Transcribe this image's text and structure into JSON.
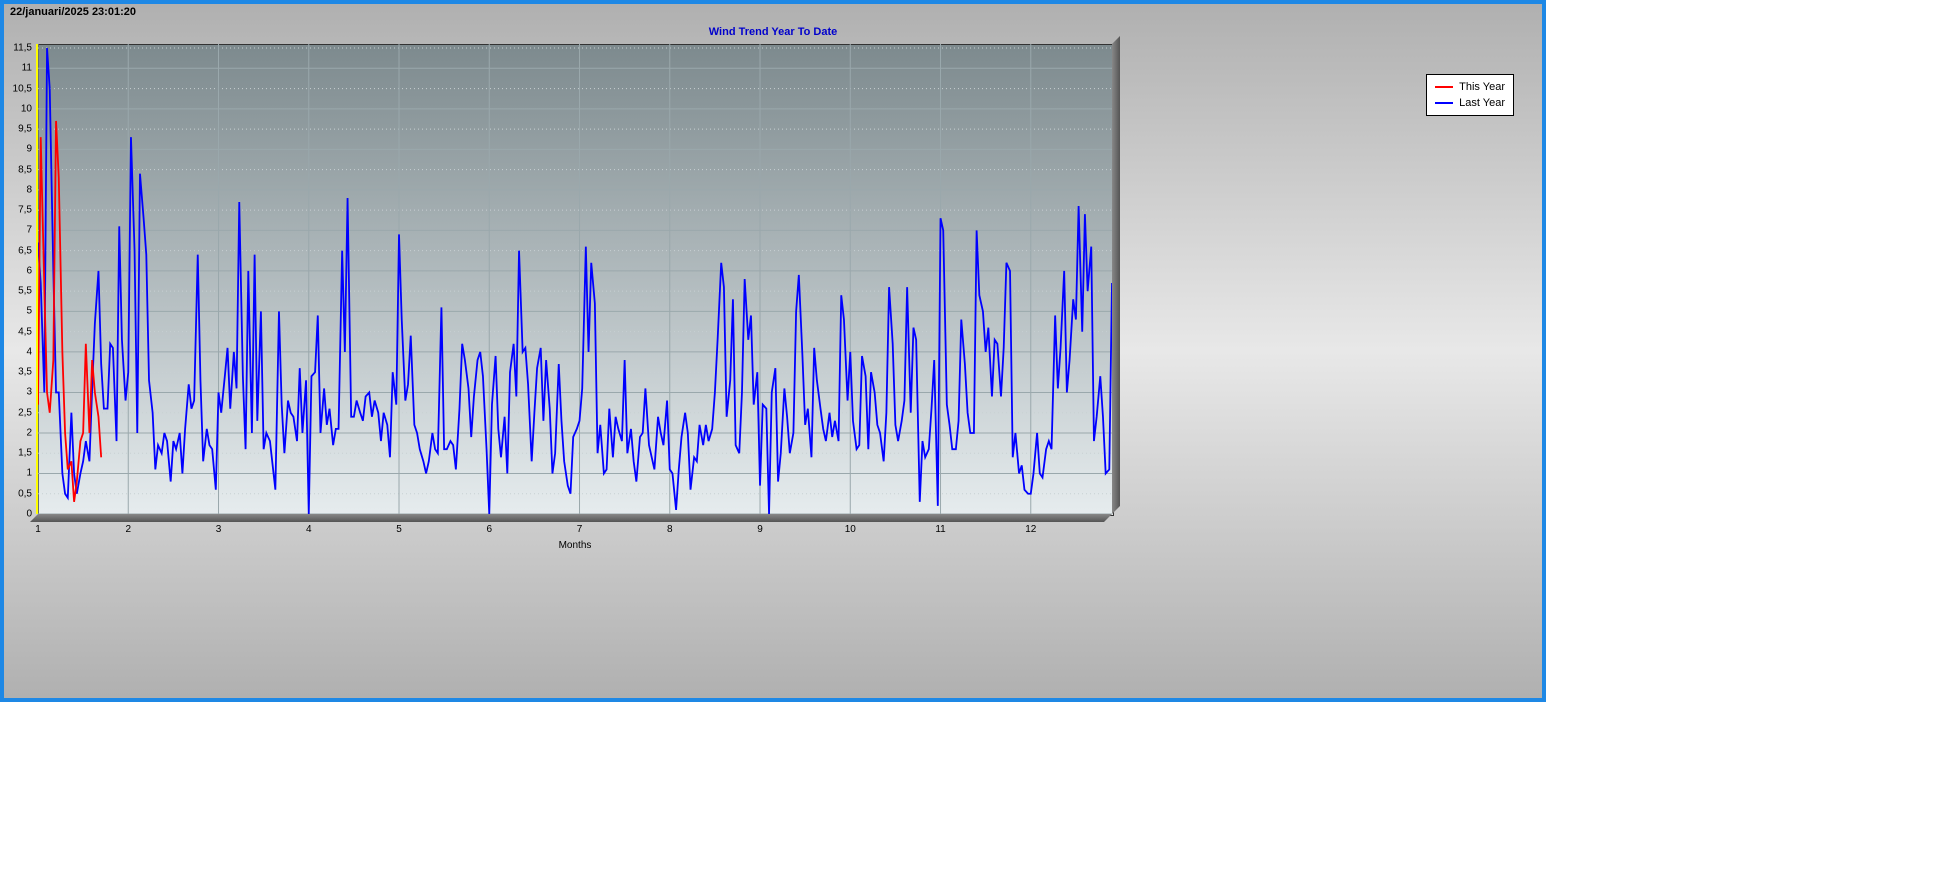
{
  "timestamp": "22/januari/2025 23:01:20",
  "chart": {
    "type": "line",
    "title": "Wind Trend Year To Date",
    "title_color": "#0000cc",
    "title_fontsize": 11,
    "frame_border_color": "#1e88e5",
    "frame_bg_gradient": [
      "#b0b0b0",
      "#e8e8e8",
      "#b0b0b0"
    ],
    "plot_bg_gradient": [
      "#7d8a8e",
      "#e6ecee"
    ],
    "grid_color_minor": "#c8d0d2",
    "grid_color_major": "#9aa8ac",
    "x_axis": {
      "title": "Months",
      "ticks": [
        1,
        2,
        3,
        4,
        5,
        6,
        7,
        8,
        9,
        10,
        11,
        12
      ],
      "min": 1,
      "max": 12.9
    },
    "y_axis": {
      "ticks": [
        0,
        0.5,
        1,
        1.5,
        2,
        2.5,
        3,
        3.5,
        4,
        4.5,
        5,
        5.5,
        6,
        6.5,
        7,
        7.5,
        8,
        8.5,
        9,
        9.5,
        10,
        10.5,
        11,
        11.5
      ],
      "tick_labels": [
        "0",
        "0,5",
        "1",
        "1,5",
        "2",
        "2,5",
        "3",
        "3,5",
        "4",
        "4,5",
        "5",
        "5,5",
        "6",
        "6,5",
        "7",
        "7,5",
        "8",
        "8,5",
        "9",
        "9,5",
        "10",
        "10,5",
        "11",
        "11,5"
      ],
      "min": 0,
      "max": 11.6,
      "accent_line_color": "#ffff00"
    },
    "legend": {
      "position": "right",
      "border_color": "#000000",
      "bg_color": "#ffffff",
      "items": [
        {
          "label": "This Year",
          "color": "#ff0000"
        },
        {
          "label": "Last Year",
          "color": "#0000ff"
        }
      ]
    },
    "series": [
      {
        "name": "Last Year",
        "color": "#0000ff",
        "line_width": 1.8,
        "x": [
          1.0,
          1.03,
          1.07,
          1.1,
          1.13,
          1.17,
          1.2,
          1.23,
          1.27,
          1.3,
          1.33,
          1.37,
          1.4,
          1.43,
          1.47,
          1.5,
          1.53,
          1.57,
          1.6,
          1.63,
          1.67,
          1.7,
          1.73,
          1.77,
          1.8,
          1.83,
          1.87,
          1.9,
          1.93,
          1.97,
          2.0,
          2.03,
          2.07,
          2.1,
          2.13,
          2.17,
          2.2,
          2.23,
          2.27,
          2.3,
          2.33,
          2.37,
          2.4,
          2.43,
          2.47,
          2.5,
          2.53,
          2.57,
          2.6,
          2.63,
          2.67,
          2.7,
          2.73,
          2.77,
          2.8,
          2.83,
          2.87,
          2.9,
          2.93,
          2.97,
          3.0,
          3.03,
          3.07,
          3.1,
          3.13,
          3.17,
          3.2,
          3.23,
          3.27,
          3.3,
          3.33,
          3.37,
          3.4,
          3.43,
          3.47,
          3.5,
          3.53,
          3.57,
          3.6,
          3.63,
          3.67,
          3.7,
          3.73,
          3.77,
          3.8,
          3.83,
          3.87,
          3.9,
          3.93,
          3.97,
          4.0,
          4.03,
          4.07,
          4.1,
          4.13,
          4.17,
          4.2,
          4.23,
          4.27,
          4.3,
          4.33,
          4.37,
          4.4,
          4.43,
          4.47,
          4.5,
          4.53,
          4.57,
          4.6,
          4.63,
          4.67,
          4.7,
          4.73,
          4.77,
          4.8,
          4.83,
          4.87,
          4.9,
          4.93,
          4.97,
          5.0,
          5.03,
          5.07,
          5.1,
          5.13,
          5.17,
          5.2,
          5.23,
          5.27,
          5.3,
          5.33,
          5.37,
          5.4,
          5.43,
          5.47,
          5.5,
          5.53,
          5.57,
          5.6,
          5.63,
          5.67,
          5.7,
          5.73,
          5.77,
          5.8,
          5.83,
          5.87,
          5.9,
          5.93,
          5.97,
          6.0,
          6.03,
          6.07,
          6.1,
          6.13,
          6.17,
          6.2,
          6.23,
          6.27,
          6.3,
          6.33,
          6.37,
          6.4,
          6.43,
          6.47,
          6.5,
          6.53,
          6.57,
          6.6,
          6.63,
          6.67,
          6.7,
          6.73,
          6.77,
          6.8,
          6.83,
          6.87,
          6.9,
          6.93,
          6.97,
          7.0,
          7.03,
          7.07,
          7.1,
          7.13,
          7.17,
          7.2,
          7.23,
          7.27,
          7.3,
          7.33,
          7.37,
          7.4,
          7.43,
          7.47,
          7.5,
          7.53,
          7.57,
          7.6,
          7.63,
          7.67,
          7.7,
          7.73,
          7.77,
          7.8,
          7.83,
          7.87,
          7.9,
          7.93,
          7.97,
          8.0,
          8.03,
          8.07,
          8.1,
          8.13,
          8.17,
          8.2,
          8.23,
          8.27,
          8.3,
          8.33,
          8.37,
          8.4,
          8.43,
          8.47,
          8.5,
          8.53,
          8.57,
          8.6,
          8.63,
          8.67,
          8.7,
          8.73,
          8.77,
          8.8,
          8.83,
          8.87,
          8.9,
          8.93,
          8.97,
          9.0,
          9.03,
          9.07,
          9.1,
          9.13,
          9.17,
          9.2,
          9.23,
          9.27,
          9.3,
          9.33,
          9.37,
          9.4,
          9.43,
          9.47,
          9.5,
          9.53,
          9.57,
          9.6,
          9.63,
          9.67,
          9.7,
          9.73,
          9.77,
          9.8,
          9.83,
          9.87,
          9.9,
          9.93,
          9.97,
          10.0,
          10.03,
          10.07,
          10.1,
          10.13,
          10.17,
          10.2,
          10.23,
          10.27,
          10.3,
          10.33,
          10.37,
          10.4,
          10.43,
          10.47,
          10.5,
          10.53,
          10.57,
          10.6,
          10.63,
          10.67,
          10.7,
          10.73,
          10.77,
          10.8,
          10.83,
          10.87,
          10.9,
          10.93,
          10.97,
          11.0,
          11.03,
          11.07,
          11.1,
          11.13,
          11.17,
          11.2,
          11.23,
          11.27,
          11.3,
          11.33,
          11.37,
          11.4,
          11.43,
          11.47,
          11.5,
          11.53,
          11.57,
          11.6,
          11.63,
          11.67,
          11.7,
          11.73,
          11.77,
          11.8,
          11.83,
          11.87,
          11.9,
          11.93,
          11.97,
          12.0,
          12.03,
          12.07,
          12.1,
          12.13,
          12.17,
          12.2,
          12.23,
          12.27,
          12.3,
          12.33,
          12.37,
          12.4,
          12.43,
          12.47,
          12.5,
          12.53,
          12.57,
          12.6,
          12.63,
          12.67,
          12.7,
          12.73,
          12.77,
          12.8,
          12.83,
          12.87,
          12.9
        ],
        "y": [
          6.7,
          5.7,
          3.0,
          11.5,
          10.5,
          6.0,
          3.0,
          3.0,
          1.0,
          0.5,
          0.4,
          2.5,
          1.0,
          0.5,
          1.0,
          1.3,
          1.8,
          1.3,
          3.1,
          4.7,
          6.0,
          3.7,
          2.6,
          2.6,
          4.2,
          4.1,
          1.8,
          7.1,
          4.3,
          2.8,
          3.5,
          9.3,
          6.5,
          2.0,
          8.4,
          7.3,
          6.4,
          3.3,
          2.5,
          1.1,
          1.7,
          1.5,
          2.0,
          1.8,
          0.8,
          1.8,
          1.6,
          2.0,
          1.0,
          2.1,
          3.2,
          2.6,
          2.8,
          6.4,
          3.3,
          1.3,
          2.1,
          1.7,
          1.6,
          0.6,
          3.0,
          2.5,
          3.4,
          4.1,
          2.6,
          4.0,
          3.1,
          7.7,
          3.4,
          1.6,
          6.0,
          2.0,
          6.4,
          2.3,
          5.0,
          1.6,
          2.0,
          1.8,
          1.2,
          0.6,
          5.0,
          2.7,
          1.5,
          2.8,
          2.5,
          2.4,
          1.8,
          3.6,
          2.0,
          3.3,
          0.0,
          3.4,
          3.5,
          4.9,
          2.0,
          3.1,
          2.2,
          2.6,
          1.7,
          2.1,
          2.1,
          6.5,
          4.0,
          7.8,
          2.4,
          2.4,
          2.8,
          2.5,
          2.3,
          2.9,
          3.0,
          2.4,
          2.8,
          2.5,
          1.8,
          2.5,
          2.2,
          1.4,
          3.5,
          2.7,
          6.9,
          4.8,
          2.8,
          3.2,
          4.4,
          2.2,
          2.0,
          1.6,
          1.3,
          1.0,
          1.3,
          2.0,
          1.6,
          1.5,
          5.1,
          1.6,
          1.6,
          1.8,
          1.7,
          1.1,
          2.6,
          4.2,
          3.8,
          3.1,
          1.9,
          2.9,
          3.8,
          4.0,
          3.4,
          1.6,
          0.0,
          2.7,
          3.9,
          2.1,
          1.4,
          2.4,
          1.0,
          3.5,
          4.2,
          2.9,
          6.5,
          4.0,
          4.1,
          3.2,
          1.3,
          2.5,
          3.6,
          4.1,
          2.3,
          3.8,
          2.6,
          1.0,
          1.5,
          3.7,
          2.3,
          1.3,
          0.7,
          0.5,
          1.9,
          2.1,
          2.3,
          3.1,
          6.6,
          4.0,
          6.2,
          5.2,
          1.5,
          2.2,
          1.0,
          1.1,
          2.6,
          1.4,
          2.4,
          2.1,
          1.8,
          3.8,
          1.5,
          2.1,
          1.3,
          0.8,
          1.9,
          2.0,
          3.1,
          1.7,
          1.4,
          1.1,
          2.4,
          2.0,
          1.7,
          2.8,
          1.1,
          1.0,
          0.1,
          1.1,
          1.9,
          2.5,
          2.0,
          0.6,
          1.4,
          1.3,
          2.2,
          1.7,
          2.2,
          1.8,
          2.1,
          3.0,
          4.3,
          6.2,
          5.6,
          2.4,
          3.3,
          5.3,
          1.7,
          1.5,
          3.0,
          5.8,
          4.3,
          4.9,
          2.7,
          3.5,
          0.7,
          2.7,
          2.6,
          0.0,
          3.0,
          3.6,
          0.8,
          1.5,
          3.1,
          2.4,
          1.5,
          2.0,
          5.0,
          5.9,
          3.9,
          2.2,
          2.6,
          1.4,
          4.1,
          3.3,
          2.6,
          2.1,
          1.8,
          2.5,
          1.9,
          2.3,
          1.8,
          5.4,
          4.8,
          2.8,
          4.0,
          2.3,
          1.6,
          1.7,
          3.9,
          3.4,
          1.6,
          3.5,
          3.0,
          2.2,
          2.0,
          1.3,
          2.5,
          5.6,
          4.2,
          2.2,
          1.8,
          2.3,
          2.8,
          5.6,
          2.5,
          4.6,
          4.3,
          0.3,
          1.8,
          1.4,
          1.6,
          2.6,
          3.8,
          0.2,
          7.3,
          7.0,
          2.7,
          2.2,
          1.6,
          1.6,
          2.3,
          4.8,
          3.7,
          2.5,
          2.0,
          2.0,
          7.0,
          5.4,
          5.0,
          4.0,
          4.6,
          2.9,
          4.3,
          4.2,
          2.9,
          4.1,
          6.2,
          6.0,
          1.4,
          2.0,
          1.0,
          1.2,
          0.6,
          0.5,
          0.5,
          1.0,
          2.0,
          1.0,
          0.9,
          1.6,
          1.8,
          1.6,
          4.9,
          3.1,
          4.1,
          6.0,
          3.0,
          3.8,
          5.3,
          4.8,
          7.6,
          4.5,
          7.4,
          5.5,
          6.6,
          1.8,
          2.4,
          3.4,
          2.4,
          1.0,
          1.1,
          5.7
        ]
      },
      {
        "name": "This Year",
        "color": "#ff0000",
        "line_width": 1.8,
        "x": [
          1.0,
          1.03,
          1.07,
          1.1,
          1.13,
          1.17,
          1.2,
          1.23,
          1.27,
          1.3,
          1.33,
          1.37,
          1.4,
          1.43,
          1.47,
          1.5,
          1.53,
          1.57,
          1.6,
          1.63,
          1.67,
          1.7
        ],
        "y": [
          2.7,
          9.3,
          5.6,
          3.0,
          2.5,
          3.8,
          9.7,
          8.3,
          4.0,
          2.0,
          1.1,
          1.3,
          0.3,
          0.8,
          1.8,
          2.0,
          4.2,
          2.0,
          3.8,
          3.0,
          2.4,
          1.4
        ]
      }
    ]
  }
}
